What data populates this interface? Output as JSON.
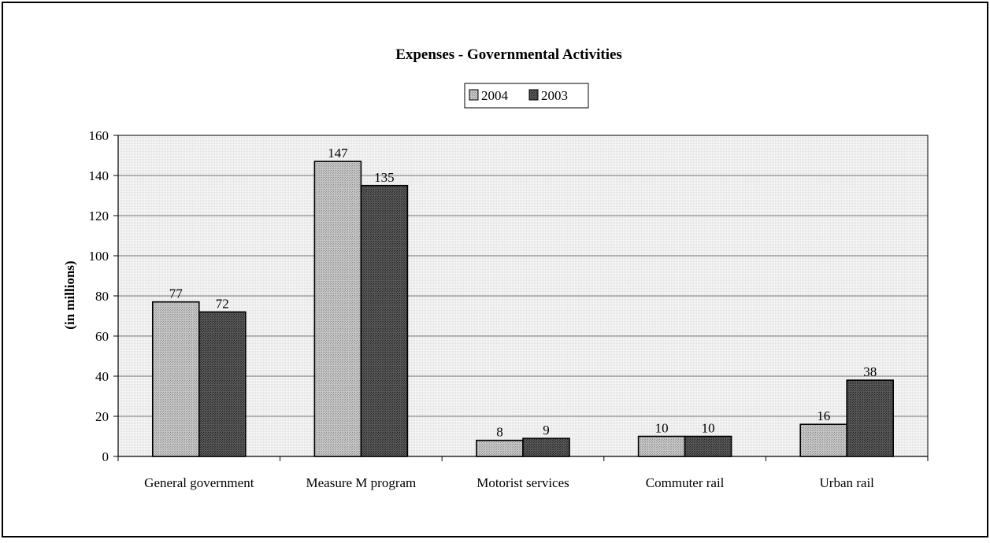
{
  "chart_data": {
    "type": "bar",
    "title": "Expenses - Governmental Activities",
    "ylabel": "(in millions)",
    "xlabel": "",
    "categories": [
      "General government",
      "Measure M program",
      "Motorist services",
      "Commuter rail",
      "Urban rail"
    ],
    "series": [
      {
        "name": "2004",
        "values": [
          77,
          147,
          8,
          10,
          16
        ],
        "color": "#b8b8b8"
      },
      {
        "name": "2003",
        "values": [
          72,
          135,
          9,
          10,
          38
        ],
        "color": "#4a4a4a"
      }
    ],
    "ylim": [
      0,
      160
    ],
    "yticks": [
      "0",
      "20",
      "40",
      "60",
      "80",
      "100",
      "120",
      "140",
      "160"
    ],
    "grid": true,
    "legend_position": "top-center",
    "plot_background": "#eeeeee",
    "data_labels": true
  }
}
